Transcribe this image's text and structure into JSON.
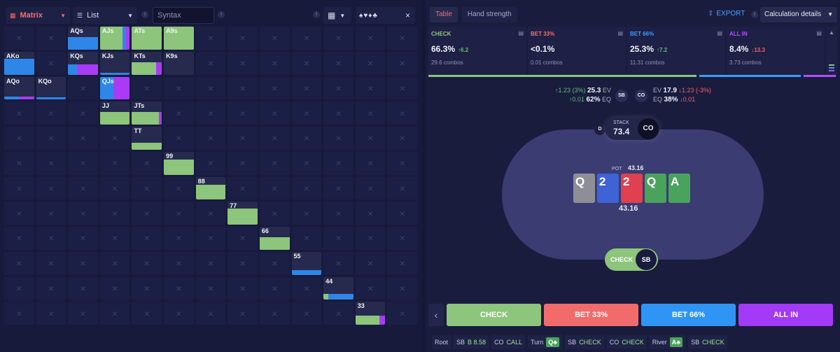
{
  "left_toolbar": {
    "mode": "Matrix",
    "view": "List",
    "syntax_placeholder": "Syntax",
    "suits_text": "♠♥♦♣",
    "close": "×"
  },
  "matrix": {
    "cells": [
      {
        "r": 0,
        "c": 2,
        "label": "AQs",
        "bars": [
          {
            "color": "#2e86e8",
            "w": 100
          }
        ],
        "h": 55
      },
      {
        "r": 0,
        "c": 3,
        "label": "AJs",
        "bars": [
          {
            "color": "#8cc57b",
            "w": 75
          },
          {
            "color": "#2e86e8",
            "w": 12
          },
          {
            "color": "#a93bf5",
            "w": 13
          }
        ],
        "h": 100
      },
      {
        "r": 0,
        "c": 4,
        "label": "ATs",
        "bars": [
          {
            "color": "#8cc57b",
            "w": 100
          }
        ],
        "h": 100
      },
      {
        "r": 0,
        "c": 5,
        "label": "A9s",
        "bars": [
          {
            "color": "#8cc57b",
            "w": 100
          }
        ],
        "h": 100
      },
      {
        "r": 1,
        "c": 0,
        "label": "AKo",
        "bars": [
          {
            "color": "#2e86e8",
            "w": 100
          }
        ],
        "h": 70
      },
      {
        "r": 1,
        "c": 2,
        "label": "KQs",
        "bars": [
          {
            "color": "#2e86e8",
            "w": 30
          },
          {
            "color": "#a93bf5",
            "w": 70
          }
        ],
        "h": 45
      },
      {
        "r": 1,
        "c": 3,
        "label": "KJs",
        "bars": [
          {
            "color": "#2e86e8",
            "w": 100
          }
        ],
        "h": 8
      },
      {
        "r": 1,
        "c": 4,
        "label": "KTs",
        "bars": [
          {
            "color": "#8cc57b",
            "w": 80
          },
          {
            "color": "#a93bf5",
            "w": 20
          }
        ],
        "h": 55
      },
      {
        "r": 1,
        "c": 5,
        "label": "K9s",
        "bars": [],
        "h": 0
      },
      {
        "r": 2,
        "c": 0,
        "label": "AQo",
        "bars": [
          {
            "color": "#2e86e8",
            "w": 50
          },
          {
            "color": "#a93bf5",
            "w": 50
          }
        ],
        "h": 12
      },
      {
        "r": 2,
        "c": 1,
        "label": "KQo",
        "bars": [
          {
            "color": "#2e86e8",
            "w": 100
          }
        ],
        "h": 10
      },
      {
        "r": 2,
        "c": 3,
        "label": "QJs",
        "bars": [
          {
            "color": "#2e86e8",
            "w": 45
          },
          {
            "color": "#a93bf5",
            "w": 55
          }
        ],
        "h": 100
      },
      {
        "r": 3,
        "c": 3,
        "label": "JJ",
        "bars": [
          {
            "color": "#8cc57b",
            "w": 100
          }
        ],
        "h": 55
      },
      {
        "r": 3,
        "c": 4,
        "label": "JTs",
        "bars": [
          {
            "color": "#8cc57b",
            "w": 90
          },
          {
            "color": "#a93bf5",
            "w": 10
          }
        ],
        "h": 55
      },
      {
        "r": 4,
        "c": 4,
        "label": "TT",
        "bars": [
          {
            "color": "#8cc57b",
            "w": 100
          }
        ],
        "h": 30
      },
      {
        "r": 5,
        "c": 5,
        "label": "99",
        "bars": [
          {
            "color": "#8cc57b",
            "w": 100
          }
        ],
        "h": 65
      },
      {
        "r": 6,
        "c": 6,
        "label": "88",
        "bars": [
          {
            "color": "#8cc57b",
            "w": 100
          }
        ],
        "h": 65
      },
      {
        "r": 7,
        "c": 7,
        "label": "77",
        "bars": [
          {
            "color": "#8cc57b",
            "w": 100
          }
        ],
        "h": 70
      },
      {
        "r": 8,
        "c": 8,
        "label": "66",
        "bars": [
          {
            "color": "#8cc57b",
            "w": 100
          }
        ],
        "h": 55
      },
      {
        "r": 9,
        "c": 9,
        "label": "55",
        "bars": [
          {
            "color": "#2e86e8",
            "w": 100
          }
        ],
        "h": 20
      },
      {
        "r": 10,
        "c": 10,
        "label": "44",
        "bars": [
          {
            "color": "#8cc57b",
            "w": 15
          },
          {
            "color": "#2e86e8",
            "w": 85
          }
        ],
        "h": 25
      },
      {
        "r": 11,
        "c": 11,
        "label": "33",
        "bars": [
          {
            "color": "#8cc57b",
            "w": 80
          },
          {
            "color": "#a93bf5",
            "w": 20
          }
        ],
        "h": 40
      }
    ]
  },
  "right_header": {
    "tabs": [
      "Table",
      "Hand strength"
    ],
    "export": "EXPORT",
    "calc": "Calculation details"
  },
  "actions": [
    {
      "name": "CHECK",
      "pct": "66.3%",
      "delta": "↑6.2",
      "combos": "29.6 combos",
      "color": "#8cc57b",
      "delta_color": "#57c26b"
    },
    {
      "name": "BET 33%",
      "pct": "<0.1%",
      "delta": "",
      "combos": "0.01 combos",
      "color": "#ff6b6b",
      "delta_color": "#57c26b"
    },
    {
      "name": "BET 66%",
      "pct": "25.3%",
      "delta": "↑7.2",
      "combos": "11.31 combos",
      "color": "#3b9bff",
      "delta_color": "#57c26b"
    },
    {
      "name": "ALL IN",
      "pct": "8.4%",
      "delta": "↓13.3",
      "combos": "3.73 combos",
      "color": "#b44dff",
      "delta_color": "#ff5d5d"
    }
  ],
  "ev": {
    "sb_delta_ev": "↑1.23 (3%)",
    "sb_ev": "25.3",
    "sb_delta_eq": "↑0.01",
    "sb_eq": "62%",
    "ev_label": "EV",
    "eq_label": "EQ",
    "sb": "SB",
    "co": "CO",
    "co_ev": "17.9",
    "co_delta_ev": "↓1.23 (-3%)",
    "co_eq": "38%",
    "co_delta_eq": "↓0.01"
  },
  "table": {
    "dealer": "D",
    "stack_label": "STACK",
    "stack": "73.4",
    "seat": "CO",
    "pot_label": "POT",
    "pot": "43.16",
    "pot_below": "43.16",
    "board": [
      {
        "rank": "Q",
        "color": "#8e8f96"
      },
      {
        "rank": "2",
        "color": "#3f63d6"
      },
      {
        "rank": "2",
        "color": "#e0404f"
      },
      {
        "rank": "Q",
        "color": "#4aa35c"
      },
      {
        "rank": "A",
        "color": "#4aa35c"
      }
    ],
    "player_action": "CHECK",
    "player_seat": "SB"
  },
  "action_buttons": [
    {
      "label": "CHECK",
      "color": "#8cc57b"
    },
    {
      "label": "BET 33%",
      "color": "#f26b6b"
    },
    {
      "label": "BET 66%",
      "color": "#2e95f5"
    },
    {
      "label": "ALL IN",
      "color": "#a23af7"
    }
  ],
  "history": [
    {
      "pos": "Root",
      "act": "",
      "card": ""
    },
    {
      "pos": "SB",
      "act": "B 8.58",
      "card": ""
    },
    {
      "pos": "CO",
      "act": "CALL",
      "card": ""
    },
    {
      "pos": "Turn",
      "act": "",
      "card": "Q♣"
    },
    {
      "pos": "SB",
      "act": "CHECK",
      "card": ""
    },
    {
      "pos": "CO",
      "act": "CHECK",
      "card": ""
    },
    {
      "pos": "River",
      "act": "",
      "card": "A♣"
    },
    {
      "pos": "SB",
      "act": "CHECK",
      "card": ""
    }
  ]
}
